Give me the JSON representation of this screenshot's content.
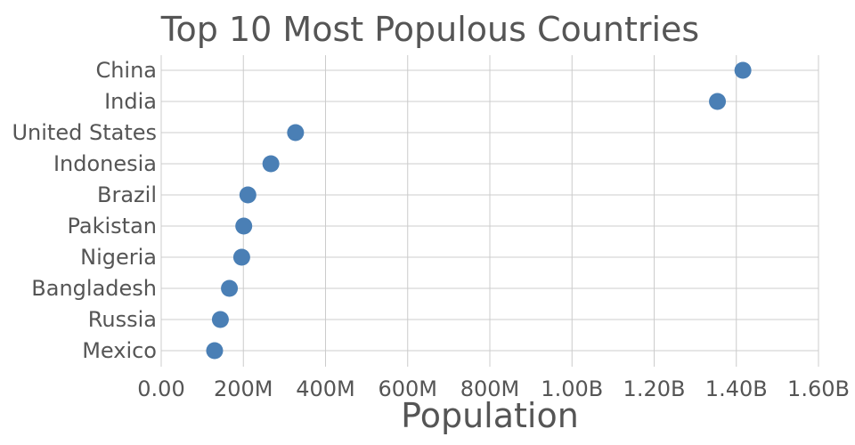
{
  "chart_data": {
    "type": "scatter",
    "title": "Top 10 Most Populous Countries",
    "xlabel": "Population",
    "ylabel": "",
    "xlim": [
      0,
      1600000000
    ],
    "x_ticks": [
      0,
      200000000,
      400000000,
      600000000,
      800000000,
      1000000000,
      1200000000,
      1400000000,
      1600000000
    ],
    "x_tick_labels": [
      "0.00",
      "200M",
      "400M",
      "600M",
      "800M",
      "1.00B",
      "1.20B",
      "1.40B",
      "1.60B"
    ],
    "grid": true,
    "marker_color": "#4a7fb5",
    "categories": [
      "China",
      "India",
      "United States",
      "Indonesia",
      "Brazil",
      "Pakistan",
      "Nigeria",
      "Bangladesh",
      "Russia",
      "Mexico"
    ],
    "values": [
      1416000000,
      1354000000,
      327000000,
      267000000,
      211000000,
      201000000,
      196000000,
      166000000,
      144000000,
      130000000
    ]
  }
}
